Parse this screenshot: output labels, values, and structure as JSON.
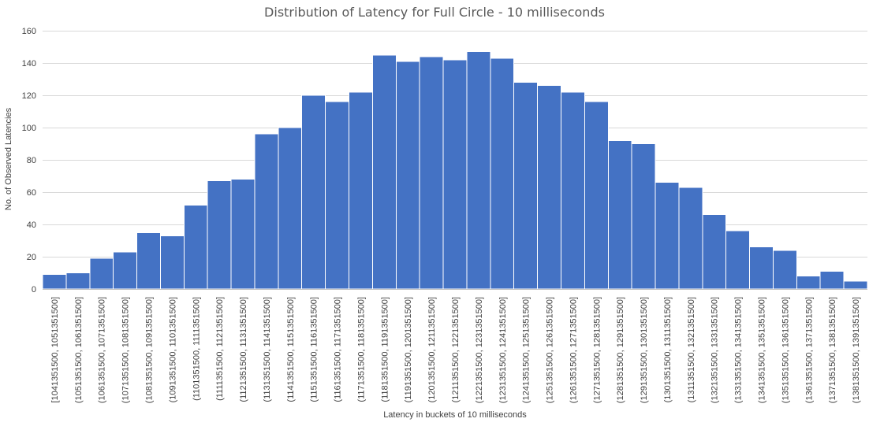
{
  "chart_data": {
    "type": "bar",
    "title": "Distribution of Latency for Full Circle - 10 milliseconds",
    "xlabel": "Latency in buckets of 10 milliseconds",
    "ylabel": "No. of Observed Latencies",
    "ylim": [
      0,
      160
    ],
    "yticks": [
      0,
      20,
      40,
      60,
      80,
      100,
      120,
      140,
      160
    ],
    "grid": true,
    "legend": "none",
    "bar_color": "#4472c4",
    "categories": [
      "[1041351500, 1051351500]",
      "(1051351500, 1061351500]",
      "(1061351500, 1071351500]",
      "(1071351500, 1081351500]",
      "(1081351500, 1091351500]",
      "(1091351500, 1101351500]",
      "(1101351500, 1111351500]",
      "(1111351500, 1121351500]",
      "(1121351500, 1131351500]",
      "(1131351500, 1141351500]",
      "(1141351500, 1151351500]",
      "(1151351500, 1161351500]",
      "(1161351500, 1171351500]",
      "(1171351500, 1181351500]",
      "(1181351500, 1191351500]",
      "(1191351500, 1201351500]",
      "(1201351500, 1211351500]",
      "(1211351500, 1221351500]",
      "(1221351500, 1231351500]",
      "(1231351500, 1241351500]",
      "(1241351500, 1251351500]",
      "(1251351500, 1261351500]",
      "(1261351500, 1271351500]",
      "(1271351500, 1281351500]",
      "(1281351500, 1291351500]",
      "(1291351500, 1301351500]",
      "(1301351500, 1311351500]",
      "(1311351500, 1321351500]",
      "(1321351500, 1331351500]",
      "(1331351500, 1341351500]",
      "(1341351500, 1351351500]",
      "(1351351500, 1361351500]",
      "(1361351500, 1371351500]",
      "(1371351500, 1381351500]",
      "(1381351500, 1391351500]"
    ],
    "values": [
      9,
      10,
      19,
      23,
      35,
      33,
      52,
      67,
      68,
      96,
      100,
      120,
      116,
      122,
      145,
      141,
      144,
      142,
      147,
      143,
      128,
      126,
      122,
      116,
      92,
      90,
      66,
      63,
      46,
      36,
      26,
      24,
      8,
      11,
      5
    ]
  }
}
